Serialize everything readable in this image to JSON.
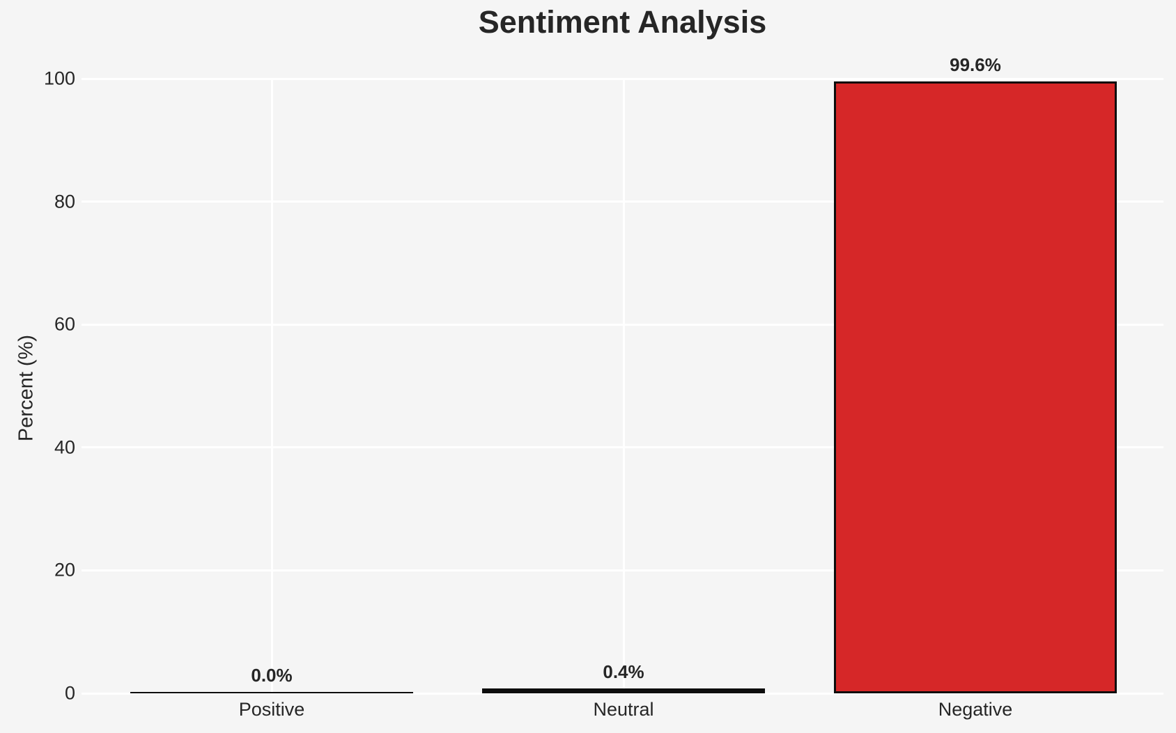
{
  "title": "Sentiment Analysis",
  "chart_data": {
    "type": "bar",
    "title": "Sentiment Analysis",
    "categories": [
      "Positive",
      "Neutral",
      "Negative"
    ],
    "values": [
      0.0,
      0.4,
      99.6
    ],
    "value_labels": [
      "0.0%",
      "0.4%",
      "99.6%"
    ],
    "xlabel": "",
    "ylabel": "Percent (%)",
    "ylim": [
      0,
      100
    ],
    "yticks": [
      0,
      20,
      40,
      60,
      80,
      100
    ],
    "grid": true,
    "legend": false,
    "colors": {
      "bar_fill": "#d62728",
      "bar_edge": "#0d0d0d",
      "background": "#f5f5f5",
      "gridline": "#ffffff",
      "text": "#262626"
    }
  }
}
